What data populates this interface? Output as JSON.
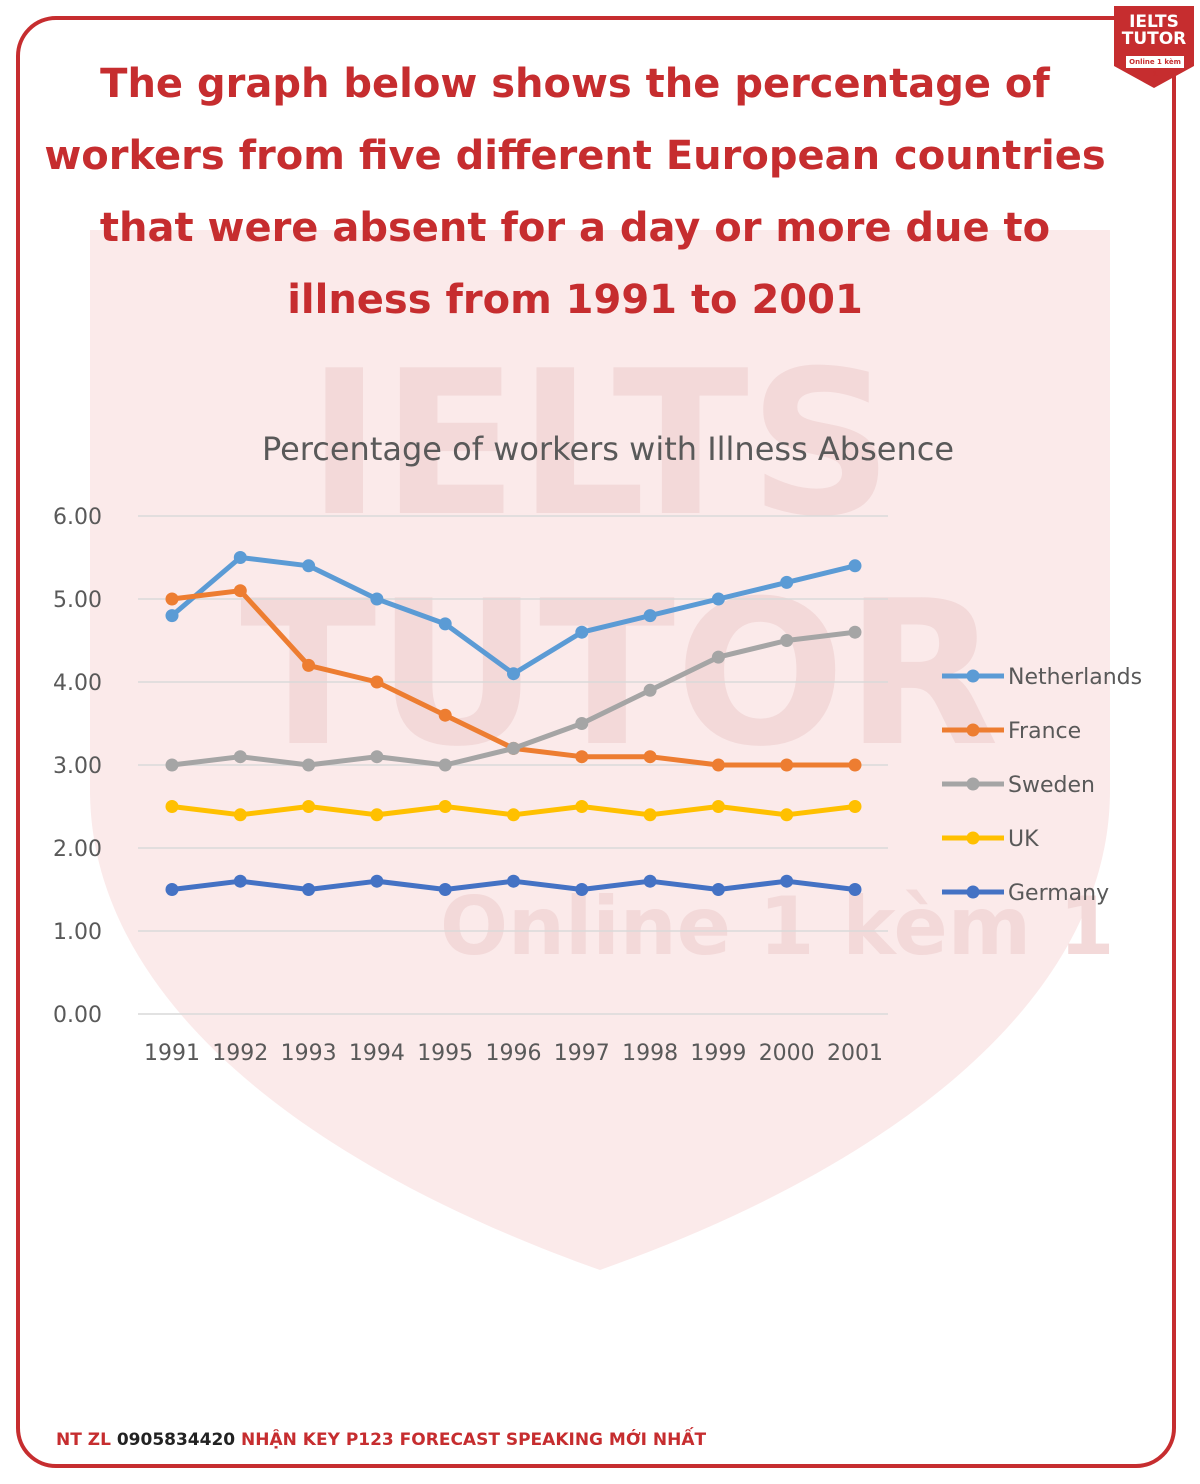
{
  "page": {
    "headline": "The graph below shows the percentage of workers from five different European countries that were absent for a day or more due to illness from 1991 to 2001",
    "brand_line1": "IELTS",
    "brand_line2": "TUTOR",
    "brand_line3": "Online 1 kèm 1",
    "watermark_main": "IELTS TUTOR",
    "watermark_sub": "Online 1 kèm 1",
    "colors": {
      "brand_red": "#c62d2f"
    }
  },
  "footer": {
    "prefix": "NT ZL",
    "phone": "0905834420",
    "suffix": "NHẬN KEY P123 FORECAST SPEAKING MỚI NHẤT"
  },
  "chart_data": {
    "type": "line",
    "title": "Percentage of workers with Illness Absence",
    "xlabel": "",
    "ylabel": "",
    "categories": [
      "1991",
      "1992",
      "1993",
      "1994",
      "1995",
      "1996",
      "1997",
      "1998",
      "1999",
      "2000",
      "2001"
    ],
    "ylim": [
      0,
      6
    ],
    "yticks": [
      "0.00",
      "1.00",
      "2.00",
      "3.00",
      "4.00",
      "5.00",
      "6.00"
    ],
    "grid": true,
    "legend_position": "right",
    "series": [
      {
        "name": "Netherlands",
        "color": "#5b9bd5",
        "values": [
          4.8,
          5.5,
          5.4,
          5.0,
          4.7,
          4.1,
          4.6,
          4.8,
          5.0,
          5.2,
          5.4
        ]
      },
      {
        "name": "France",
        "color": "#ed7d31",
        "values": [
          5.0,
          5.1,
          4.2,
          4.0,
          3.6,
          3.2,
          3.1,
          3.1,
          3.0,
          3.0,
          3.0
        ]
      },
      {
        "name": "Sweden",
        "color": "#a5a5a5",
        "values": [
          3.0,
          3.1,
          3.0,
          3.1,
          3.0,
          3.2,
          3.5,
          3.9,
          4.3,
          4.5,
          4.6
        ]
      },
      {
        "name": "UK",
        "color": "#ffc000",
        "values": [
          2.5,
          2.4,
          2.5,
          2.4,
          2.5,
          2.4,
          2.5,
          2.4,
          2.5,
          2.4,
          2.5
        ]
      },
      {
        "name": "Germany",
        "color": "#4472c4",
        "values": [
          1.5,
          1.6,
          1.5,
          1.6,
          1.5,
          1.6,
          1.5,
          1.6,
          1.5,
          1.6,
          1.5
        ]
      }
    ]
  }
}
